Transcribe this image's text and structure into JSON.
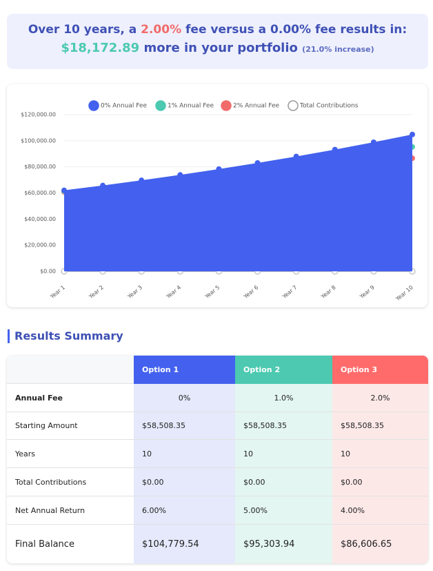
{
  "header": {
    "line1": [
      "Over 10 years, a ",
      "2.00%",
      " fee versus a 0.00% fee results in:"
    ],
    "difference": "$18,172.89",
    "line2": " more in your portfolio",
    "increase": "(21.0% increase)"
  },
  "chart_data": {
    "type": "area",
    "categories": [
      "Year 1",
      "Year 2",
      "Year 3",
      "Year 4",
      "Year 5",
      "Year 6",
      "Year 7",
      "Year 8",
      "Year 9",
      "Year 10"
    ],
    "series": [
      {
        "name": "Total Contributions",
        "color": "#c8c8c8",
        "values": [
          0,
          0,
          0,
          0,
          0,
          0,
          0,
          0,
          0,
          0
        ]
      },
      {
        "name": "2% Annual Fee",
        "color": "#f26b6b",
        "values": [
          60849,
          63283,
          65814,
          68447,
          71185,
          74032,
          76993,
          80073,
          83276,
          86606.65
        ]
      },
      {
        "name": "1% Annual Fee",
        "color": "#4cc9b0",
        "values": [
          61434,
          64505,
          67731,
          71117,
          74673,
          78407,
          82327,
          86444,
          90766,
          95303.94
        ]
      },
      {
        "name": "0% Annual Fee",
        "color": "#4361ee",
        "values": [
          62019,
          65740,
          69685,
          73866,
          78298,
          82996,
          87976,
          93254,
          98850,
          104779.54
        ]
      }
    ],
    "legend_order": [
      3,
      2,
      1,
      0
    ],
    "ylim": [
      0,
      120000
    ],
    "yticks": [
      {
        "value": 0,
        "label": "$0.00"
      },
      {
        "value": 20000,
        "label": "$20,000.00"
      },
      {
        "value": 40000,
        "label": "$40,000.00"
      },
      {
        "value": 60000,
        "label": "$60,000.00"
      },
      {
        "value": 80000,
        "label": "$80,000.00"
      },
      {
        "value": 100000,
        "label": "$100,000.00"
      },
      {
        "value": 120000,
        "label": "$120,000.00"
      }
    ],
    "grid": true
  },
  "summary": {
    "title": "Results Summary",
    "columns": [
      "Option 1",
      "Option 2",
      "Option 3"
    ],
    "rows": [
      {
        "label": "Annual Fee",
        "cells": [
          "0%",
          "1.0%",
          "2.0%"
        ]
      },
      {
        "label": "Starting Amount",
        "cells": [
          "$58,508.35",
          "$58,508.35",
          "$58,508.35"
        ]
      },
      {
        "label": "Years",
        "cells": [
          "10",
          "10",
          "10"
        ]
      },
      {
        "label": "Total Contributions",
        "cells": [
          "$0.00",
          "$0.00",
          "$0.00"
        ]
      },
      {
        "label": "Net Annual Return",
        "cells": [
          "6.00%",
          "5.00%",
          "4.00%"
        ]
      },
      {
        "label": "Final Balance",
        "cells": [
          "$104,779.54",
          "$95,303.94",
          "$86,606.65"
        ]
      }
    ]
  }
}
